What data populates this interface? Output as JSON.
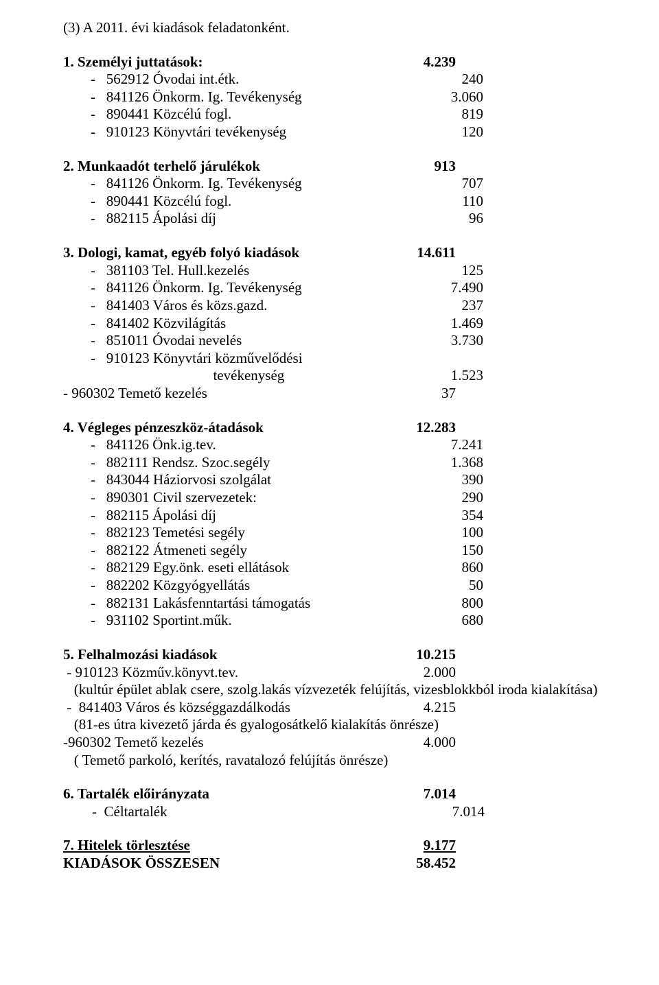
{
  "heading": "(3) A 2011. évi kiadások feladatonként.",
  "s1": {
    "title": "1. Személyi juttatások:",
    "title_val": "4.239",
    "rows": [
      {
        "label": "-   562912 Óvodai int.étk.",
        "val": "240"
      },
      {
        "label": "-   841126 Önkorm. Ig. Tevékenység",
        "val": "3.060"
      },
      {
        "label": "-   890441 Közcélú fogl.",
        "val": "819"
      },
      {
        "label": "-   910123 Könyvtári tevékenység",
        "val": "120"
      }
    ]
  },
  "s2": {
    "title": "2. Munkaadót terhelő járulékok",
    "title_val": "913",
    "rows": [
      {
        "label": "-   841126 Önkorm. Ig. Tevékenység",
        "val": "707"
      },
      {
        "label": "-   890441 Közcélú fogl.",
        "val": "110"
      },
      {
        "label": "-   882115 Ápolási díj",
        "val": "96"
      }
    ]
  },
  "s3": {
    "title": "3. Dologi, kamat, egyéb folyó kiadások",
    "title_val": "14.611",
    "rows": [
      {
        "label": "-   381103 Tel. Hull.kezelés",
        "val": "125"
      },
      {
        "label": "-   841126 Önkorm. Ig. Tevékenység",
        "val": "7.490"
      },
      {
        "label": "-   841403 Város és közs.gazd.",
        "val": "237"
      },
      {
        "label": "-   841402 Közvilágítás",
        "val": "1.469"
      },
      {
        "label": "-   851011 Óvodai nevelés",
        "val": "3.730"
      },
      {
        "label": "-   910123 Könyvtári közművelődési",
        "val": ""
      },
      {
        "label": "                                  tevékenység",
        "val": "1.523"
      },
      {
        "label": "- 960302 Temető kezelés",
        "val": "37"
      }
    ]
  },
  "s4": {
    "title": "4. Végleges pénzeszköz-átadások",
    "title_val": "12.283",
    "rows": [
      {
        "label": "-   841126 Önk.ig.tev.",
        "val": "7.241"
      },
      {
        "label": "-   882111 Rendsz. Szoc.segély",
        "val": "1.368"
      },
      {
        "label": "-   843044 Háziorvosi szolgálat",
        "val": "390"
      },
      {
        "label": "-   890301 Civil szervezetek:",
        "val": "290"
      },
      {
        "label": "-   882115 Ápolási díj",
        "val": "354"
      },
      {
        "label": "-   882123 Temetési segély",
        "val": "100"
      },
      {
        "label": "-   882122 Átmeneti segély",
        "val": "150"
      },
      {
        "label": "-   882129 Egy.önk. eseti ellátások",
        "val": "860"
      },
      {
        "label": "-   882202 Közgyógyellátás",
        "val": "50"
      },
      {
        "label": "-   882131 Lakásfenntartási támogatás",
        "val": "800"
      },
      {
        "label": "-   931102 Sportint.műk.",
        "val": "680"
      }
    ]
  },
  "s5": {
    "title": "5. Felhalmozási kiadások",
    "title_val": "10.215",
    "r0": {
      "label": " - 910123 Közműv.könyvt.tev.",
      "val": "2.000"
    },
    "p0": "   (kultúr épület ablak csere, szolg.lakás vízvezeték felújítás, vizesblokkból iroda kialakítása)",
    "r1": {
      "label": " -  841403 Város és községgazdálkodás",
      "val": "4.215"
    },
    "p1": "   (81-es útra kivezető járda és gyalogosátkelő kialakítás önrésze)",
    "r2": {
      "label": "-960302 Temető kezelés",
      "val": "4.000"
    },
    "p2": "   ( Temető parkoló, kerítés, ravatalozó felújítás önrésze)"
  },
  "s6": {
    "title": "6. Tartalék előirányzata",
    "title_val": "7.014",
    "rows": [
      {
        "label": "-  Céltartalék",
        "val": "7.014"
      }
    ]
  },
  "s7": {
    "title": "7. Hitelek törlesztése",
    "title_val": "9.177"
  },
  "total": {
    "label": "KIADÁSOK ÖSSZESEN",
    "val": "58.452"
  }
}
